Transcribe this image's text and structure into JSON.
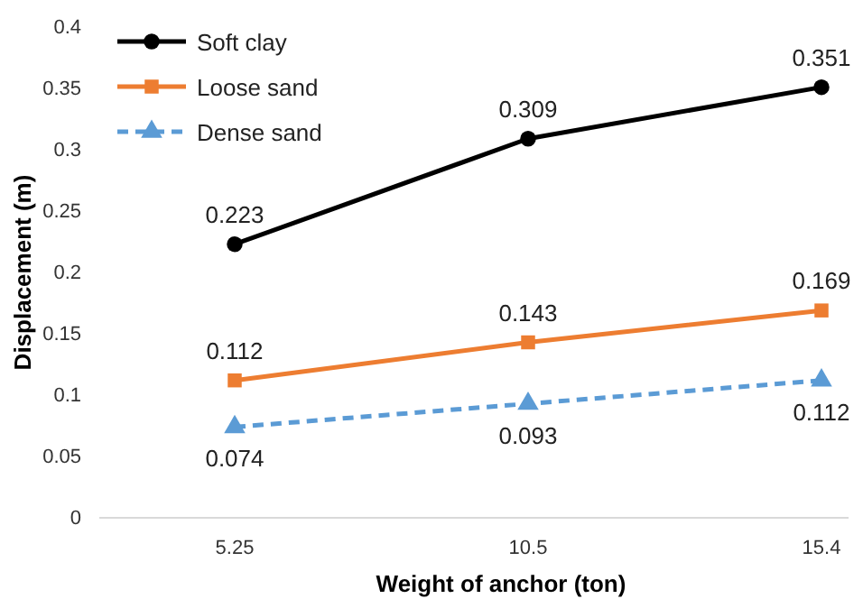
{
  "chart_data": {
    "type": "line",
    "xlabel": "Weight of anchor (ton)",
    "ylabel": "Displacement (m)",
    "categories": [
      "5.25",
      "10.5",
      "15.4"
    ],
    "series": [
      {
        "name": "Soft clay",
        "color": "#000000",
        "values": [
          0.223,
          0.309,
          0.351
        ],
        "marker": "circle",
        "line_style": "solid"
      },
      {
        "name": "Loose sand",
        "color": "#ed7d31",
        "values": [
          0.112,
          0.143,
          0.169
        ],
        "marker": "square",
        "line_style": "solid"
      },
      {
        "name": "Dense sand",
        "color": "#5b9bd5",
        "values": [
          0.074,
          0.093,
          0.112
        ],
        "marker": "triangle",
        "line_style": "dashed"
      }
    ],
    "ylim": [
      0,
      0.4
    ],
    "yticks": [
      0,
      0.05,
      0.1,
      0.15,
      0.2,
      0.25,
      0.3,
      0.35,
      0.4
    ],
    "grid": false,
    "legend": "top left",
    "data_labels": true
  }
}
